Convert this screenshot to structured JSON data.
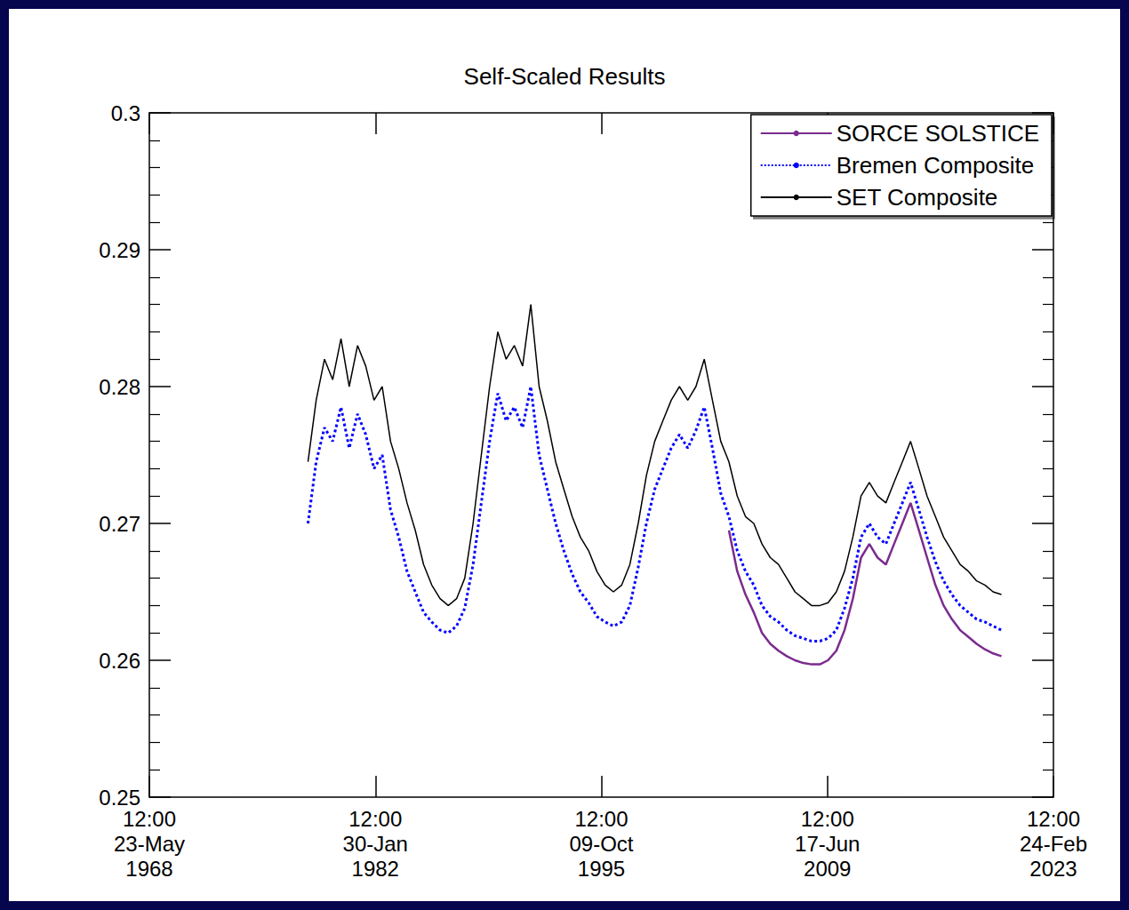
{
  "chart_data": {
    "type": "line",
    "title": "Self-Scaled Results",
    "x": [
      "1978-01",
      "1978-07",
      "1979-01",
      "1979-07",
      "1980-01",
      "1980-07",
      "1981-01",
      "1981-07",
      "1982-01",
      "1982-07",
      "1983-01",
      "1983-07",
      "1984-01",
      "1984-07",
      "1985-01",
      "1985-07",
      "1986-01",
      "1986-07",
      "1987-01",
      "1987-07",
      "1988-01",
      "1988-07",
      "1989-01",
      "1989-07",
      "1990-01",
      "1990-07",
      "1991-01",
      "1991-07",
      "1992-01",
      "1992-07",
      "1993-01",
      "1993-07",
      "1994-01",
      "1994-07",
      "1995-01",
      "1995-07",
      "1996-01",
      "1996-07",
      "1997-01",
      "1997-07",
      "1998-01",
      "1998-07",
      "1999-01",
      "1999-07",
      "2000-01",
      "2000-07",
      "2001-01",
      "2001-07",
      "2002-01",
      "2002-07",
      "2003-01",
      "2003-07",
      "2004-01",
      "2004-07",
      "2005-01",
      "2005-07",
      "2006-01",
      "2006-07",
      "2007-01",
      "2007-07",
      "2008-01",
      "2008-07",
      "2009-01",
      "2009-07",
      "2010-01",
      "2010-07",
      "2011-01",
      "2011-07",
      "2012-01",
      "2012-07",
      "2013-01",
      "2013-07",
      "2014-01",
      "2014-07",
      "2015-01",
      "2015-07",
      "2016-01",
      "2016-07",
      "2017-01",
      "2017-07",
      "2018-01",
      "2018-07",
      "2019-01",
      "2019-07",
      "2020-01"
    ],
    "series": [
      {
        "name": "SORCE SOLSTICE",
        "color": "#7b2b8e",
        "type": "line",
        "line_style": "solid",
        "values": [
          null,
          null,
          null,
          null,
          null,
          null,
          null,
          null,
          null,
          null,
          null,
          null,
          null,
          null,
          null,
          null,
          null,
          null,
          null,
          null,
          null,
          null,
          null,
          null,
          null,
          null,
          null,
          null,
          null,
          null,
          null,
          null,
          null,
          null,
          null,
          null,
          null,
          null,
          null,
          null,
          null,
          null,
          null,
          null,
          null,
          null,
          null,
          null,
          null,
          null,
          null,
          0.2695,
          0.2665,
          0.2648,
          0.2635,
          0.262,
          0.2612,
          0.2607,
          0.2603,
          0.26,
          0.2598,
          0.2597,
          0.2597,
          0.26,
          0.2607,
          0.2622,
          0.2645,
          0.2675,
          0.2685,
          0.2675,
          0.267,
          0.2685,
          0.27,
          0.2715,
          0.2695,
          0.2675,
          0.2655,
          0.264,
          0.263,
          0.2622,
          0.2617,
          0.2612,
          0.2608,
          0.2605,
          0.2603
        ]
      },
      {
        "name": "Bremen Composite",
        "color": "#0000ff",
        "type": "line",
        "line_style": "dotted",
        "values": [
          0.27,
          0.2745,
          0.277,
          0.276,
          0.2785,
          0.2755,
          0.278,
          0.2765,
          0.274,
          0.275,
          0.271,
          0.269,
          0.2665,
          0.265,
          0.2635,
          0.2628,
          0.2622,
          0.262,
          0.2625,
          0.2638,
          0.267,
          0.2715,
          0.276,
          0.2795,
          0.2775,
          0.2785,
          0.277,
          0.28,
          0.275,
          0.2725,
          0.27,
          0.268,
          0.2663,
          0.265,
          0.2642,
          0.2632,
          0.2628,
          0.2625,
          0.2628,
          0.264,
          0.2668,
          0.27,
          0.2725,
          0.274,
          0.2755,
          0.2765,
          0.2755,
          0.2768,
          0.2785,
          0.2755,
          0.2722,
          0.2705,
          0.268,
          0.2665,
          0.2655,
          0.264,
          0.2632,
          0.2628,
          0.2622,
          0.2618,
          0.2616,
          0.2614,
          0.2614,
          0.2616,
          0.2622,
          0.2638,
          0.266,
          0.269,
          0.27,
          0.269,
          0.2685,
          0.27,
          0.2715,
          0.273,
          0.271,
          0.269,
          0.2672,
          0.2658,
          0.2648,
          0.264,
          0.2635,
          0.263,
          0.2628,
          0.2625,
          0.2622
        ]
      },
      {
        "name": "SET Composite",
        "color": "#000000",
        "type": "line",
        "line_style": "solid",
        "values": [
          0.2745,
          0.279,
          0.282,
          0.2805,
          0.2835,
          0.28,
          0.283,
          0.2815,
          0.279,
          0.28,
          0.276,
          0.274,
          0.2715,
          0.2695,
          0.267,
          0.2655,
          0.2645,
          0.264,
          0.2645,
          0.266,
          0.27,
          0.275,
          0.28,
          0.284,
          0.282,
          0.283,
          0.2815,
          0.286,
          0.28,
          0.2775,
          0.2745,
          0.2725,
          0.2705,
          0.269,
          0.268,
          0.2665,
          0.2655,
          0.265,
          0.2655,
          0.267,
          0.27,
          0.2735,
          0.276,
          0.2775,
          0.279,
          0.28,
          0.279,
          0.28,
          0.282,
          0.279,
          0.276,
          0.2745,
          0.272,
          0.2705,
          0.27,
          0.2685,
          0.2675,
          0.267,
          0.266,
          0.265,
          0.2645,
          0.264,
          0.264,
          0.2642,
          0.265,
          0.2665,
          0.269,
          0.272,
          0.273,
          0.272,
          0.2715,
          0.273,
          0.2745,
          0.276,
          0.274,
          0.272,
          0.2705,
          0.269,
          0.268,
          0.267,
          0.2665,
          0.2658,
          0.2655,
          0.265,
          0.2648
        ]
      }
    ],
    "xlim": [
      "1968-05-23T12:00",
      "2023-02-24T12:00"
    ],
    "xticks": [
      {
        "value": "1968-05-23T12:00",
        "label": "12:00 23-May 1968"
      },
      {
        "value": "1982-01-30T12:00",
        "label": "12:00 30-Jan 1982"
      },
      {
        "value": "1995-10-09T12:00",
        "label": "12:00 09-Oct 1995"
      },
      {
        "value": "2009-06-17T12:00",
        "label": "12:00 17-Jun 2009"
      },
      {
        "value": "2023-02-24T12:00",
        "label": "12:00 24-Feb 2023"
      }
    ],
    "ylim": [
      0.25,
      0.3
    ],
    "yticks": [
      0.25,
      0.26,
      0.27,
      0.28,
      0.29,
      0.3
    ],
    "grid": false,
    "legend": "upper right"
  }
}
